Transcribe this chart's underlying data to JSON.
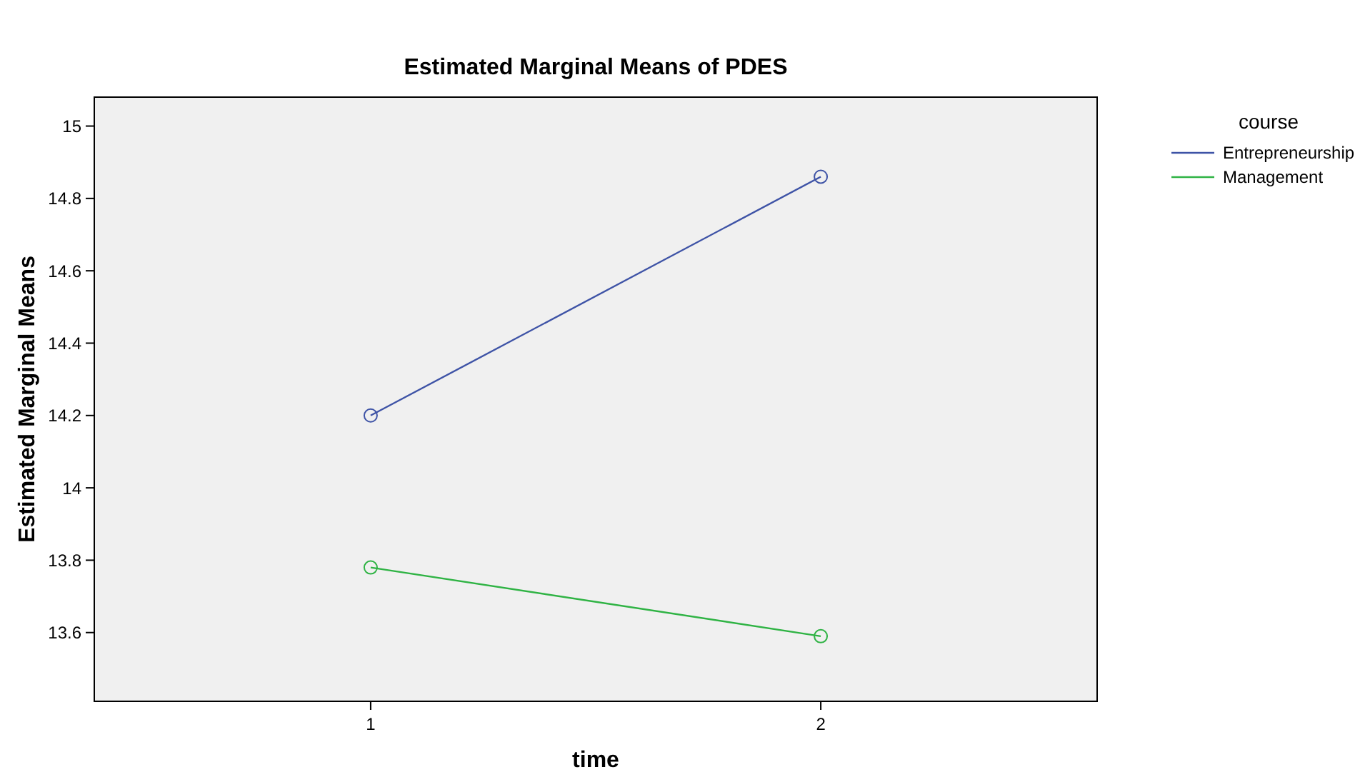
{
  "chart_data": {
    "type": "line",
    "title": "Estimated Marginal Means of PDES",
    "xlabel": "time",
    "ylabel": "Estimated Marginal Means",
    "legend_title": "course",
    "categories": [
      "1",
      "2"
    ],
    "series": [
      {
        "name": "Entrepreneurship",
        "color": "#3e53a6",
        "values": [
          14.2,
          14.86
        ]
      },
      {
        "name": "Management",
        "color": "#2fb344",
        "values": [
          13.78,
          13.59
        ]
      }
    ],
    "ylim": [
      13.41,
      15.08
    ],
    "yticks": [
      13.6,
      13.8,
      14,
      14.2,
      14.4,
      14.6,
      14.8,
      15
    ],
    "grid": false,
    "legend": "right",
    "marker": "circle",
    "line_style": "solid"
  }
}
